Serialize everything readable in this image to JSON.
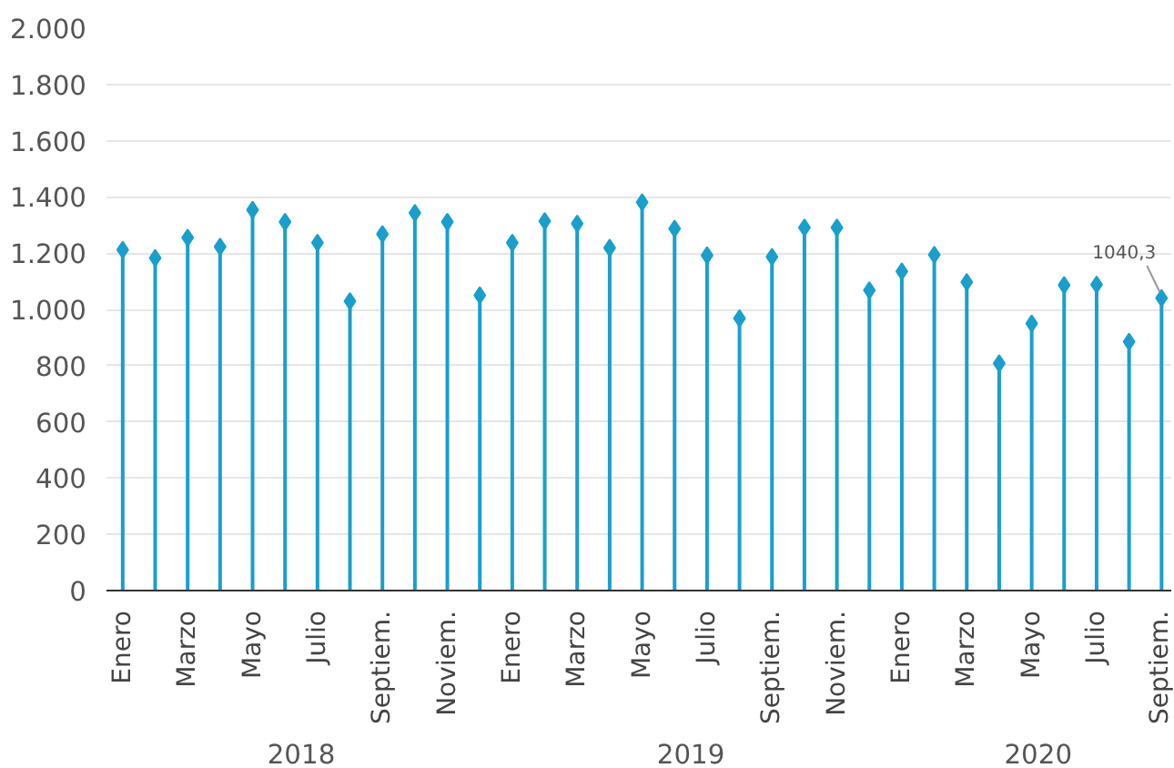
{
  "chart_data": {
    "type": "lollipop",
    "marker": "diamond",
    "grid": "y",
    "color": "#1a9fcc",
    "categories": [
      "Enero",
      null,
      "Marzo",
      null,
      "Mayo",
      null,
      "Julio",
      null,
      "Septiem.",
      null,
      "Noviem.",
      null,
      "Enero",
      null,
      "Marzo",
      null,
      "Mayo",
      null,
      "Julio",
      null,
      "Septiem.",
      null,
      "Noviem.",
      null,
      "Enero",
      null,
      "Marzo",
      null,
      "Mayo",
      null,
      "Julio",
      null,
      "Septiem."
    ],
    "values": [
      1212,
      1183,
      1255,
      1223,
      1354,
      1311,
      1237,
      1029,
      1268,
      1343,
      1311,
      1050,
      1237,
      1314,
      1305,
      1219,
      1381,
      1287,
      1192,
      968,
      1187,
      1291,
      1291,
      1068,
      1135,
      1194,
      1097,
      808,
      950,
      1086,
      1088,
      885,
      1040.3
    ],
    "value_labels": [
      null,
      null,
      null,
      null,
      null,
      null,
      null,
      null,
      null,
      null,
      null,
      null,
      null,
      null,
      null,
      null,
      null,
      null,
      null,
      null,
      null,
      null,
      null,
      null,
      null,
      null,
      null,
      null,
      null,
      null,
      null,
      null,
      "1040,3"
    ],
    "annotations": [
      "2018",
      "2019",
      "2020"
    ],
    "ylim": [
      0,
      2000
    ],
    "yticks": [
      {
        "value": 0,
        "label": "0"
      },
      {
        "value": 200,
        "label": "200"
      },
      {
        "value": 400,
        "label": "400"
      },
      {
        "value": 600,
        "label": "600"
      },
      {
        "value": 800,
        "label": "800"
      },
      {
        "value": 1000,
        "label": "1.000"
      },
      {
        "value": 1200,
        "label": "1.200"
      },
      {
        "value": 1400,
        "label": "1.400"
      },
      {
        "value": 1600,
        "label": "1.600"
      },
      {
        "value": 1800,
        "label": "1.800"
      },
      {
        "value": 2000,
        "label": "2.000"
      }
    ]
  }
}
